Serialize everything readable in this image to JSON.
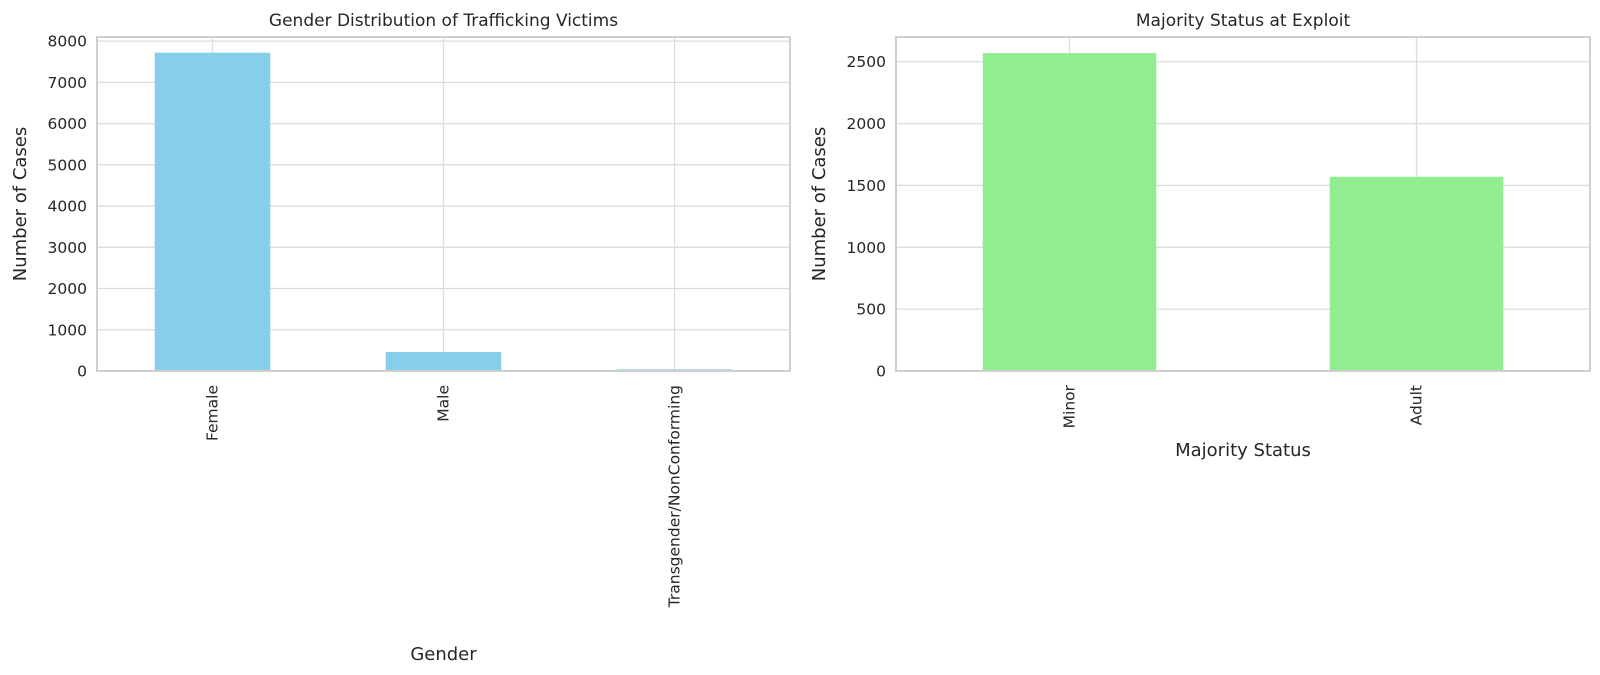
{
  "chart_data": [
    {
      "type": "bar",
      "title": "Gender Distribution of Trafficking Victims",
      "xlabel": "Gender",
      "ylabel": "Number of Cases",
      "categories": [
        "Female",
        "Male",
        "Transgender/NonConforming"
      ],
      "values": [
        7720,
        460,
        40
      ],
      "ylim": [
        0,
        8100
      ],
      "yticks": [
        0,
        1000,
        2000,
        3000,
        4000,
        5000,
        6000,
        7000,
        8000
      ],
      "color": "#87ceeb",
      "grid": true,
      "xtick_rotation": 90
    },
    {
      "type": "bar",
      "title": "Majority Status at Exploit",
      "xlabel": "Majority Status",
      "ylabel": "Number of Cases",
      "categories": [
        "Minor",
        "Adult"
      ],
      "values": [
        2570,
        1570
      ],
      "ylim": [
        0,
        2700
      ],
      "yticks": [
        0,
        500,
        1000,
        1500,
        2000,
        2500
      ],
      "color": "#90ee90",
      "grid": true,
      "xtick_rotation": 90
    }
  ]
}
